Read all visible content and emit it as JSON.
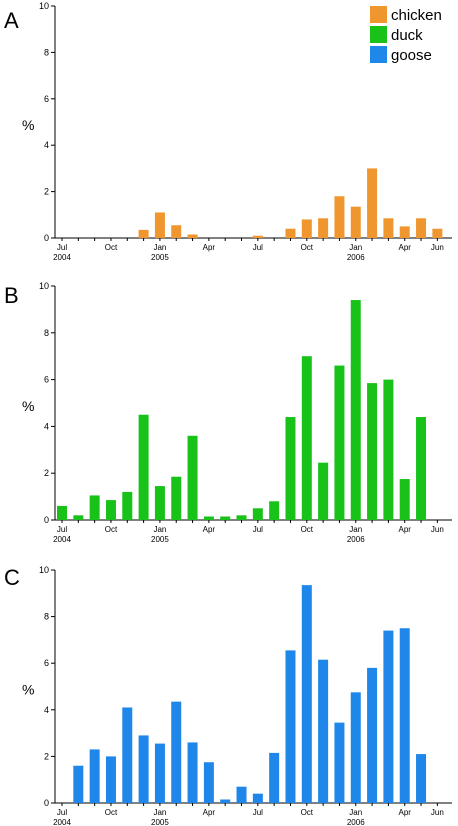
{
  "colors": {
    "chicken": "#f0962f",
    "duck": "#18c219",
    "goose": "#1f86ea",
    "axis": "#000000"
  },
  "chart_data": [
    {
      "type": "bar",
      "panel": "A",
      "ylabel": "%",
      "ylim": [
        0,
        10
      ],
      "yticks": [
        0,
        2,
        4,
        6,
        8,
        10
      ],
      "x_tick_labels": [
        {
          "label": "Jul",
          "index": 0,
          "year": "2004"
        },
        {
          "label": "Oct",
          "index": 3
        },
        {
          "label": "Jan",
          "index": 6,
          "year": "2005"
        },
        {
          "label": "Apr",
          "index": 9
        },
        {
          "label": "Jul",
          "index": 12
        },
        {
          "label": "Oct",
          "index": 15
        },
        {
          "label": "Jan",
          "index": 18,
          "year": "2006"
        },
        {
          "label": "Apr",
          "index": 21
        },
        {
          "label": "Jun",
          "index": 23
        }
      ],
      "categories": [
        "Jul 2004",
        "Aug 2004",
        "Sep 2004",
        "Oct 2004",
        "Nov 2004",
        "Dec 2004",
        "Jan 2005",
        "Feb 2005",
        "Mar 2005",
        "Apr 2005",
        "May 2005",
        "Jun 2005",
        "Jul 2005",
        "Aug 2005",
        "Sep 2005",
        "Oct 2005",
        "Nov 2005",
        "Dec 2005",
        "Jan 2006",
        "Feb 2006",
        "Mar 2006",
        "Apr 2006",
        "May 2006",
        "Jun 2006"
      ],
      "series": [
        {
          "name": "chicken",
          "color_key": "chicken",
          "values": [
            0,
            0,
            0,
            0,
            0,
            0.35,
            1.1,
            0.55,
            0.15,
            0,
            0,
            0,
            0.1,
            0,
            0.4,
            0.8,
            0.85,
            1.8,
            1.35,
            3.0,
            0.85,
            0.5,
            0.85,
            0.4
          ]
        }
      ],
      "legend": {
        "position": "top-right",
        "entries": [
          {
            "label": "chicken",
            "color_key": "chicken"
          },
          {
            "label": "duck",
            "color_key": "duck"
          },
          {
            "label": "goose",
            "color_key": "goose"
          }
        ]
      }
    },
    {
      "type": "bar",
      "panel": "B",
      "ylabel": "%",
      "ylim": [
        0,
        10
      ],
      "yticks": [
        0,
        2,
        4,
        6,
        8,
        10
      ],
      "x_tick_labels": [
        {
          "label": "Jul",
          "index": 0,
          "year": "2004"
        },
        {
          "label": "Oct",
          "index": 3
        },
        {
          "label": "Jan",
          "index": 6,
          "year": "2005"
        },
        {
          "label": "Apr",
          "index": 9
        },
        {
          "label": "Jul",
          "index": 12
        },
        {
          "label": "Oct",
          "index": 15
        },
        {
          "label": "Jan",
          "index": 18,
          "year": "2006"
        },
        {
          "label": "Apr",
          "index": 21
        },
        {
          "label": "Jun",
          "index": 23
        }
      ],
      "categories": [
        "Jul 2004",
        "Aug 2004",
        "Sep 2004",
        "Oct 2004",
        "Nov 2004",
        "Dec 2004",
        "Jan 2005",
        "Feb 2005",
        "Mar 2005",
        "Apr 2005",
        "May 2005",
        "Jun 2005",
        "Jul 2005",
        "Aug 2005",
        "Sep 2005",
        "Oct 2005",
        "Nov 2005",
        "Dec 2005",
        "Jan 2006",
        "Feb 2006",
        "Mar 2006",
        "Apr 2006",
        "May 2006",
        "Jun 2006"
      ],
      "series": [
        {
          "name": "duck",
          "color_key": "duck",
          "values": [
            0.6,
            0.2,
            1.05,
            0.85,
            1.2,
            4.5,
            1.45,
            1.85,
            3.6,
            0.15,
            0.15,
            0.2,
            0.5,
            0.8,
            4.4,
            7.0,
            2.45,
            6.6,
            9.4,
            5.85,
            6.0,
            1.75,
            4.4,
            0
          ]
        }
      ]
    },
    {
      "type": "bar",
      "panel": "C",
      "ylabel": "%",
      "ylim": [
        0,
        10
      ],
      "yticks": [
        0,
        2,
        4,
        6,
        8,
        10
      ],
      "x_tick_labels": [
        {
          "label": "Jul",
          "index": 0,
          "year": "2004"
        },
        {
          "label": "Oct",
          "index": 3
        },
        {
          "label": "Jan",
          "index": 6,
          "year": "2005"
        },
        {
          "label": "Apr",
          "index": 9
        },
        {
          "label": "Jul",
          "index": 12
        },
        {
          "label": "Oct",
          "index": 15
        },
        {
          "label": "Jan",
          "index": 18,
          "year": "2006"
        },
        {
          "label": "Apr",
          "index": 21
        },
        {
          "label": "Jun",
          "index": 23
        }
      ],
      "categories": [
        "Jul 2004",
        "Aug 2004",
        "Sep 2004",
        "Oct 2004",
        "Nov 2004",
        "Dec 2004",
        "Jan 2005",
        "Feb 2005",
        "Mar 2005",
        "Apr 2005",
        "May 2005",
        "Jun 2005",
        "Jul 2005",
        "Aug 2005",
        "Sep 2005",
        "Oct 2005",
        "Nov 2005",
        "Dec 2005",
        "Jan 2006",
        "Feb 2006",
        "Mar 2006",
        "Apr 2006",
        "May 2006",
        "Jun 2006"
      ],
      "series": [
        {
          "name": "goose",
          "color_key": "goose",
          "values": [
            0,
            1.6,
            2.3,
            2.0,
            4.1,
            2.9,
            2.55,
            4.35,
            2.6,
            1.75,
            0.15,
            0.7,
            0.4,
            2.15,
            6.55,
            9.35,
            6.15,
            3.45,
            4.75,
            5.8,
            7.4,
            7.5,
            2.1,
            0
          ]
        }
      ]
    }
  ]
}
